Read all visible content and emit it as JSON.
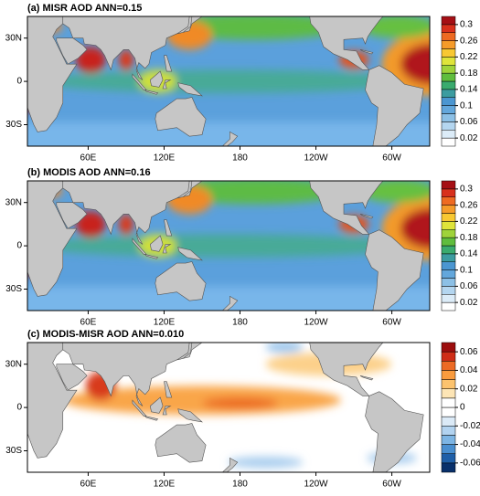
{
  "panels": [
    {
      "title": "(a) MISR AOD ANN=0.15",
      "field": "ab",
      "colorbar": {
        "ticks": [
          0.02,
          0.06,
          0.1,
          0.14,
          0.18,
          0.22,
          0.26,
          0.3
        ],
        "colors": [
          "#ffffff",
          "#dcecf8",
          "#b4d6f0",
          "#8cc0e6",
          "#63a7dc",
          "#4b96d1",
          "#3c9ca0",
          "#3aab6e",
          "#5fbd3d",
          "#9fd33a",
          "#dfe43a",
          "#f8c832",
          "#f59b2a",
          "#ee6a22",
          "#d8301c",
          "#a50f15"
        ]
      }
    },
    {
      "title": "(b) MODIS AOD ANN=0.16",
      "field": "ab",
      "colorbar": {
        "ticks": [
          0.02,
          0.06,
          0.1,
          0.14,
          0.18,
          0.22,
          0.26,
          0.3
        ],
        "colors": [
          "#ffffff",
          "#dcecf8",
          "#b4d6f0",
          "#8cc0e6",
          "#63a7dc",
          "#4b96d1",
          "#3c9ca0",
          "#3aab6e",
          "#5fbd3d",
          "#9fd33a",
          "#dfe43a",
          "#f8c832",
          "#f59b2a",
          "#ee6a22",
          "#d8301c",
          "#a50f15"
        ]
      }
    },
    {
      "title": "(c) MODIS-MISR AOD ANN=0.010",
      "field": "c",
      "colorbar": {
        "ticks": [
          -0.06,
          -0.04,
          -0.02,
          0,
          0.02,
          0.04,
          0.06
        ],
        "colors": [
          "#08306b",
          "#1f5fa8",
          "#4a8fd0",
          "#7db5e4",
          "#b2d3f0",
          "#dbeaf7",
          "#ffffff",
          "#ffffff",
          "#fde5b5",
          "#fcc36e",
          "#f99b3d",
          "#ec6a24",
          "#cf2d17",
          "#9c0d0d"
        ]
      }
    }
  ],
  "lon_ticks": [
    {
      "value": 60,
      "label": "60E"
    },
    {
      "value": 120,
      "label": "120E"
    },
    180,
    {
      "value": 240,
      "label": "120W"
    },
    {
      "value": 300,
      "label": "60W"
    }
  ],
  "lat_ticks": [
    {
      "value": 30,
      "label": "30N"
    },
    0,
    {
      "value": -30,
      "label": "30S"
    }
  ]
}
